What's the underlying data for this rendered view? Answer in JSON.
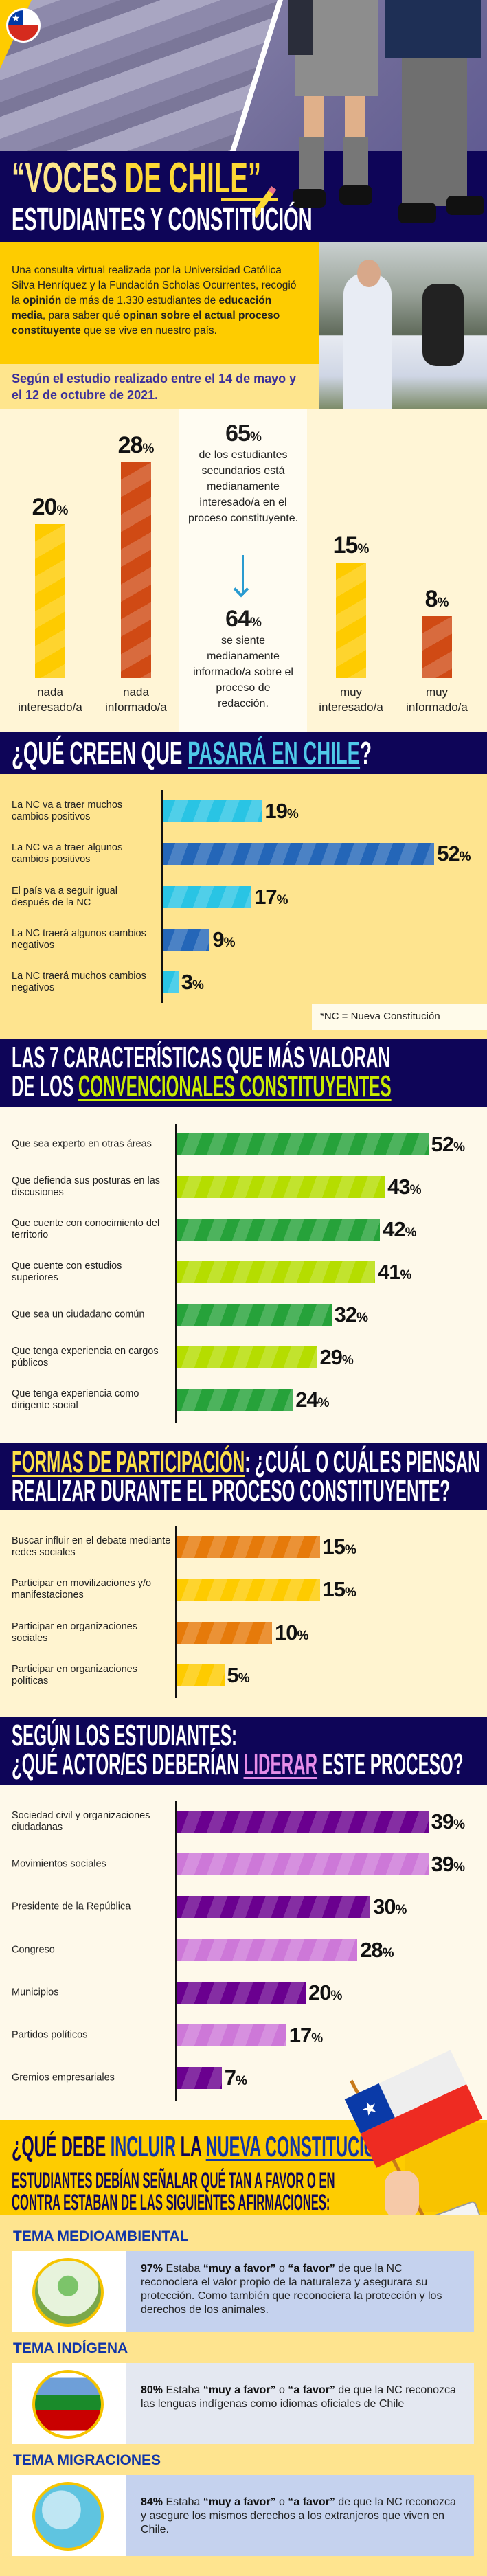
{
  "header": {
    "title_part1": "“VOCES ",
    "title_part2": "DE CHILE”",
    "subtitle": "ESTUDIANTES Y CONSTITUCIÓN",
    "flag_icon": "chile-flag-badge-icon",
    "pencil_icon": "pencil-icon"
  },
  "intro": {
    "segments": [
      {
        "t": "Una consulta virtual realizada por la Universidad Católica Silva Henríquez y la Fundación Scholas Ocurrentes, recogió la ",
        "b": false
      },
      {
        "t": "opinión",
        "b": true
      },
      {
        "t": " de más de 1.330 estudiantes de ",
        "b": false
      },
      {
        "t": "educación media",
        "b": true
      },
      {
        "t": ", para saber qué ",
        "b": false
      },
      {
        "t": "opinan sobre el actual proceso constituyente",
        "b": true
      },
      {
        "t": " que se vive en nuestro país.",
        "b": false
      }
    ],
    "dates": "Según el estudio realizado entre el 14 de mayo y el 12 de octubre de 2021."
  },
  "interest": {
    "center_top_value": "65",
    "center_top_text": "de los estudiantes secundarios está medianamente interesado/a en el proceso constituyente.",
    "center_bottom_value": "64",
    "center_bottom_text": "se siente medianamente informado/a sobre el proceso de redacción.",
    "arrow_icon": "arrow-down-icon"
  },
  "chart_data": [
    {
      "type": "bar",
      "orientation": "vertical",
      "categories": [
        "nada interesado/a",
        "nada informado/a",
        "muy interesado/a",
        "muy informado/a"
      ],
      "values": [
        20,
        28,
        15,
        8
      ],
      "unit": "%",
      "colors": [
        "#fecb00",
        "#d04a14",
        "#fecb00",
        "#d04a14"
      ]
    },
    {
      "type": "bar",
      "orientation": "horizontal",
      "title_part1": "¿QUÉ CREEN QUE ",
      "title_highlight": "PASARÁ EN CHILE",
      "title_part2": "?",
      "categories": [
        "La NC va a traer muchos cambios positivos",
        "La NC va a traer algunos cambios positivos",
        "El país va a seguir igual después de la NC",
        "La NC traerá algunos cambios negativos",
        "La NC traerá muchos cambios negativos"
      ],
      "values": [
        19,
        52,
        17,
        9,
        3
      ],
      "unit": "%",
      "colors": [
        "#29c4e4",
        "#2466b8",
        "#29c4e4",
        "#2466b8",
        "#29c4e4"
      ],
      "footnote": "*NC = Nueva Constitución"
    },
    {
      "type": "bar",
      "orientation": "horizontal",
      "title_part1": "LAS 7 CARACTERÍSTICAS QUE MÁS VALORAN",
      "title_part2": "DE LOS ",
      "title_highlight": "CONVENCIONALES CONSTITUYENTES",
      "categories": [
        "Que sea experto en otras áreas",
        "Que defienda sus posturas en las discusiones",
        "Que cuente con conocimiento del territorio",
        "Que cuente con estudios superiores",
        "Que sea un ciudadano común",
        "Que tenga experiencia en cargos públicos",
        "Que tenga experiencia como dirigente social"
      ],
      "values": [
        52,
        43,
        42,
        41,
        32,
        29,
        24
      ],
      "unit": "%",
      "colors": [
        "#26a23a",
        "#b5dd00",
        "#26a23a",
        "#b5dd00",
        "#26a23a",
        "#b5dd00",
        "#26a23a"
      ]
    },
    {
      "type": "bar",
      "orientation": "horizontal",
      "title_highlight": "FORMAS DE PARTICIPACIÓN",
      "title_part1": ": ¿CUÁL O CUÁLES PIENSAN",
      "title_part2": "REALIZAR DURANTE EL PROCESO CONSTITUYENTE?",
      "categories": [
        "Buscar influir en el debate mediante redes sociales",
        "Participar en movilizaciones y/o manifestaciones",
        "Participar en organizaciones sociales",
        "Participar en organizaciones políticas"
      ],
      "values": [
        15,
        15,
        10,
        5
      ],
      "unit": "%",
      "colors": [
        "#e67a0a",
        "#fecb00",
        "#e67a0a",
        "#fecb00"
      ]
    },
    {
      "type": "bar",
      "orientation": "horizontal",
      "title_part1": "SEGÚN LOS ESTUDIANTES:",
      "title_part2": "¿QUÉ ACTOR/ES DEBERÍAN ",
      "title_highlight": "LIDERAR",
      "title_part3": " ESTE PROCESO?",
      "categories": [
        "Sociedad civil y organizaciones ciudadanas",
        "Movimientos sociales",
        "Presidente de la República",
        "Congreso",
        "Municipios",
        "Partidos políticos",
        "Gremios empresariales"
      ],
      "values": [
        39,
        39,
        30,
        28,
        20,
        17,
        7
      ],
      "unit": "%",
      "colors": [
        "#6a008f",
        "#cd78d8",
        "#6a008f",
        "#cd78d8",
        "#6a008f",
        "#cd78d8",
        "#6a008f"
      ]
    }
  ],
  "constitution": {
    "title_part1": "¿QUÉ DEBE ",
    "title_hl1": "INCLUIR",
    "title_part2": " LA ",
    "title_hl2": "NUEVA CONSTITUCIÓN",
    "title_part3": "?",
    "subtitle_line1": "ESTUDIANTES DEBÍAN SEÑALAR QUÉ TAN A FAVOR O EN",
    "subtitle_line2": "CONTRA ESTABAN DE LAS SIGUIENTES AFIRMACIONES:",
    "temas": [
      {
        "heading": "TEMA MEDIOAMBIENTAL",
        "pct": "97%",
        "pre": " Estaba ",
        "q1": "“muy a favor”",
        "mid": " o ",
        "q2": "“a favor”",
        "rest": " de que la NC reconociera el valor propio de la naturaleza y asegurara su protección. Como también que reconociera la protección y los derechos de los animales.",
        "icon": "environment-illustration-icon"
      },
      {
        "heading": "TEMA INDÍGENA",
        "pct": "80%",
        "pre": " Estaba ",
        "q1": "“muy a favor”",
        "mid": " o ",
        "q2": "“a favor”",
        "rest": " de que la NC reconozca  las lenguas indígenas como idiomas oficiales de Chile",
        "icon": "mapuche-flag-icon"
      },
      {
        "heading": "TEMA MIGRACIONES",
        "pct": "84%",
        "pre": " Estaba ",
        "q1": "“muy a favor”",
        "mid": " o ",
        "q2": "“a favor”",
        "rest": " de que la NC reconozca y asegure los mismos derechos a los extranjeros que viven en Chile.",
        "icon": "migration-illustration-icon"
      }
    ]
  },
  "colors": {
    "navy": "#0e0558",
    "yellow": "#fecc00",
    "title_yellow": "#fdd835",
    "cyan_highlight": "#4fc9e8",
    "lime_highlight": "#c9ec00",
    "pink_highlight": "#e58ce8",
    "blue_text": "#1035a8"
  }
}
